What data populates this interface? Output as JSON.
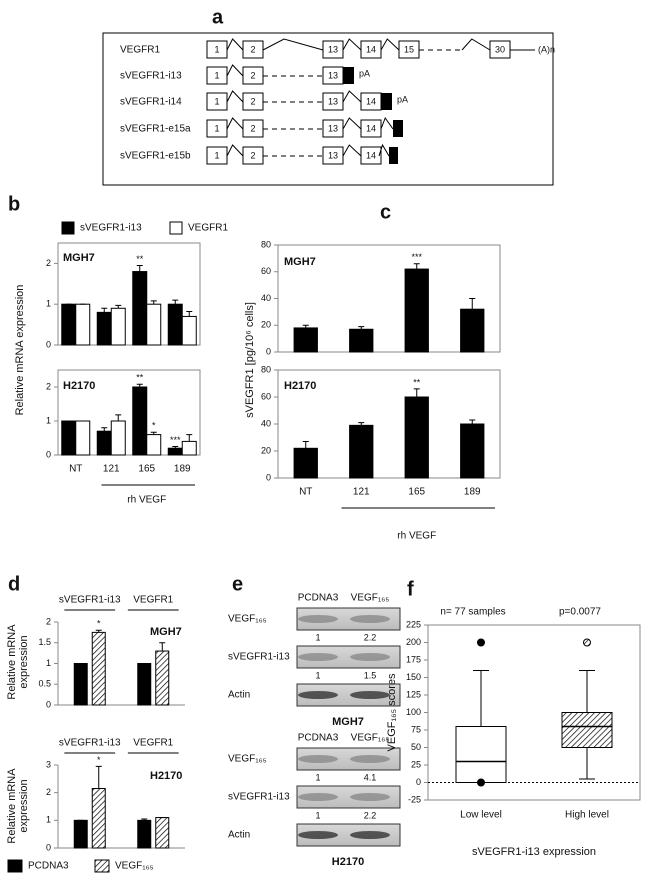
{
  "panel_labels": [
    "a",
    "b",
    "c",
    "d",
    "e",
    "f"
  ],
  "diagram": {
    "rows": [
      {
        "name": "VEGFR1",
        "exons": [
          "1",
          "2",
          "13",
          "14",
          "15",
          "30"
        ],
        "tail": "(A)n"
      },
      {
        "name": "sVEGFR1-i13",
        "exons": [
          "1",
          "2",
          "13"
        ],
        "tail": "pA"
      },
      {
        "name": "sVEGFR1-i14",
        "exons": [
          "1",
          "2",
          "13",
          "14"
        ],
        "tail": "pA"
      },
      {
        "name": "sVEGFR1-e15a",
        "exons": [
          "1",
          "2",
          "13",
          "14"
        ]
      },
      {
        "name": "sVEGFR1-e15b",
        "exons": [
          "1",
          "2",
          "13",
          "14"
        ]
      }
    ]
  },
  "chart_data": [
    {
      "type": "bar",
      "title": "MGH7",
      "y_label": "Relative mRNA expression",
      "frame": true,
      "ylim": [
        0,
        2.5
      ],
      "yticks": [
        0,
        1,
        2
      ],
      "series": [
        {
          "name": "sVEGFR1-i13",
          "color": "#000000",
          "values": [
            1,
            0.8,
            1.8,
            1.0
          ],
          "errors": [
            0,
            0.1,
            0.15,
            0.1
          ],
          "annotations": [
            null,
            null,
            "**",
            null
          ]
        },
        {
          "name": "VEGFR1",
          "color": "#ffffff",
          "values": [
            1,
            0.9,
            1.0,
            0.7
          ],
          "errors": [
            0,
            0.07,
            0.08,
            0.12
          ]
        }
      ]
    },
    {
      "type": "bar",
      "title": "H2170",
      "x_label": "rh VEGF",
      "frame": true,
      "categories": [
        "NT",
        "121",
        "165",
        "189"
      ],
      "category_position": "bottom",
      "ylim": [
        0,
        2.5
      ],
      "yticks": [
        0,
        1,
        2
      ],
      "series": [
        {
          "color": "#000000",
          "values": [
            1,
            0.7,
            2.0,
            0.2
          ],
          "errors": [
            0,
            0.1,
            0.08,
            0.05
          ],
          "annotations": [
            null,
            null,
            "**",
            "***"
          ]
        },
        {
          "color": "#ffffff",
          "values": [
            1,
            1.0,
            0.6,
            0.4
          ],
          "errors": [
            0,
            0.18,
            0.07,
            0.2
          ],
          "annotations": [
            null,
            null,
            "*",
            null
          ]
        }
      ]
    },
    {
      "type": "bar",
      "title": "MGH7",
      "y_label": "sVEGFR1 [pg/10⁶ cells]",
      "frame": true,
      "ylim": [
        0,
        80
      ],
      "yticks": [
        0,
        20,
        40,
        60,
        80
      ],
      "series": [
        {
          "color": "#000000",
          "values": [
            18,
            17,
            62,
            32
          ],
          "errors": [
            2,
            2,
            4,
            8
          ],
          "annotations": [
            null,
            null,
            "***",
            null
          ]
        }
      ]
    },
    {
      "type": "bar",
      "title": "H2170",
      "x_label": "rh VEGF",
      "frame": true,
      "categories": [
        "NT",
        "121",
        "165",
        "189"
      ],
      "category_position": "bottom",
      "ylim": [
        0,
        80
      ],
      "yticks": [
        0,
        20,
        40,
        60,
        80
      ],
      "series": [
        {
          "color": "#000000",
          "values": [
            22,
            39,
            60,
            40
          ],
          "errors": [
            5,
            2,
            6,
            3
          ],
          "annotations": [
            null,
            null,
            "**",
            null
          ]
        }
      ]
    },
    {
      "type": "bar",
      "title": "MGH7",
      "y_label": [
        "Relative mRNA",
        "expression"
      ],
      "frame": false,
      "categories": [
        "sVEGFR1-i13",
        "VEGFR1"
      ],
      "category_position": "top",
      "ylim": [
        0,
        2
      ],
      "yticks": [
        0,
        0.5,
        1,
        1.5,
        2
      ],
      "series": [
        {
          "name": "PCDNA3",
          "color": "#000000",
          "values": [
            1,
            1
          ],
          "errors": [
            0,
            0
          ]
        },
        {
          "name": "VEGF₁₆₅",
          "color": "#ffffff",
          "hatch": true,
          "values": [
            1.75,
            1.3
          ],
          "errors": [
            0.05,
            0.2
          ],
          "annotations": [
            "*",
            null
          ]
        }
      ]
    },
    {
      "type": "bar",
      "title": "H2170",
      "y_label": [
        "Relative mRNA",
        "expression"
      ],
      "frame": false,
      "categories": [
        "sVEGFR1-i13",
        "VEGFR1"
      ],
      "category_position": "top",
      "ylim": [
        0,
        3
      ],
      "yticks": [
        0,
        1,
        2,
        3
      ],
      "series": [
        {
          "color": "#000000",
          "values": [
            1,
            1
          ],
          "errors": [
            0,
            0.05
          ]
        },
        {
          "color": "#ffffff",
          "hatch": true,
          "values": [
            2.15,
            1.1
          ],
          "errors": [
            0.8,
            0
          ],
          "annotations": [
            "*",
            null
          ]
        }
      ]
    },
    {
      "type": "box",
      "annotations": [
        "n= 77 samples",
        "p=0.0077"
      ],
      "y_label": "VEGF₁₆₅ scores",
      "x_label": "sVEGFR1-i13 expression",
      "categories": [
        "Low level",
        "High level"
      ],
      "ylim": [
        -25,
        225
      ],
      "yticks": [
        -25,
        0,
        25,
        50,
        75,
        100,
        125,
        150,
        175,
        200,
        225
      ],
      "hline": 0,
      "boxes": [
        {
          "whisker_low": 0,
          "q1": 0,
          "median": 30,
          "q3": 80,
          "whisker_high": 160,
          "outliers": [
            200,
            0
          ]
        },
        {
          "whisker_low": 5,
          "q1": 50,
          "median": 80,
          "q3": 100,
          "whisker_high": 160,
          "outliers": [
            200
          ],
          "hatch": true
        }
      ]
    }
  ],
  "blots": [
    {
      "columns": [
        "PCDNA3",
        "VEGF₁₆₅"
      ],
      "cell_line": "MGH7",
      "rows": [
        {
          "label": "VEGF₁₆₅",
          "quant": [
            1,
            2.2
          ]
        },
        {
          "label": "sVEGFR1-i13",
          "quant": [
            1,
            1.5
          ]
        },
        {
          "label": "Actin"
        }
      ]
    },
    {
      "columns": [
        "PCDNA3",
        "VEGF₁₆₅"
      ],
      "cell_line": "H2170",
      "rows": [
        {
          "label": "VEGF₁₆₅",
          "quant": [
            1,
            4.1
          ]
        },
        {
          "label": "sVEGFR1-i13",
          "quant": [
            1,
            2.2
          ]
        },
        {
          "label": "Actin"
        }
      ]
    }
  ]
}
